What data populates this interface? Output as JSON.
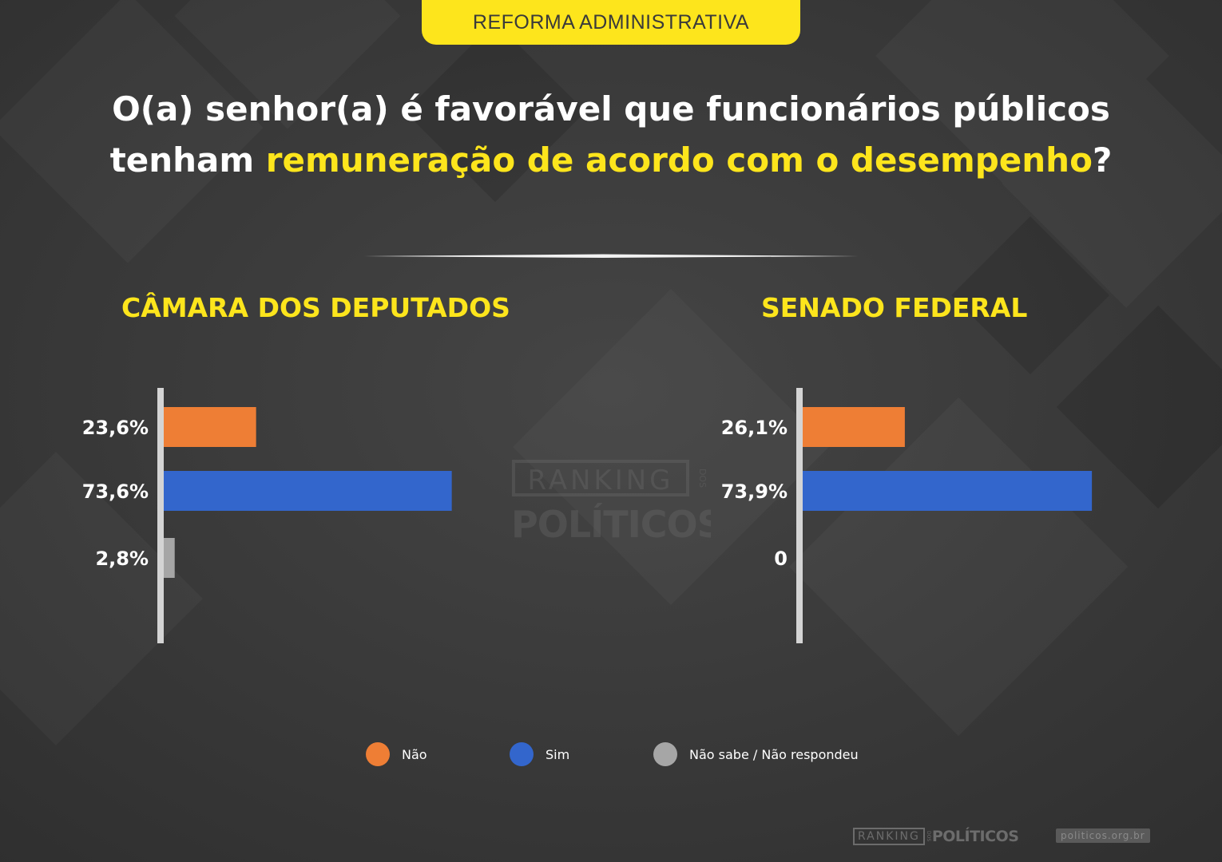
{
  "header": {
    "tag": "REFORMA ADMINISTRATIVA",
    "question_part1": "O(a) senhor(a) é favorável que funcionários públicos",
    "question_part2": "tenham ",
    "question_highlight": "remuneração de acordo com o desempenho",
    "question_end": "?"
  },
  "colors": {
    "background": "#3a3a3a",
    "accent": "#fde51c",
    "nao": "#ee7e35",
    "sim": "#3366cc",
    "nao_sabe": "#a6a6a6"
  },
  "chart_data": [
    {
      "type": "bar",
      "orientation": "horizontal",
      "title": "CÂMARA DOS DEPUTADOS",
      "categories": [
        "Não",
        "Sim",
        "Não sabe / Não respondeu"
      ],
      "values": [
        23.6,
        73.6,
        2.8
      ],
      "labels": [
        "23,6%",
        "73,6%",
        "2,8%"
      ],
      "xlim": [
        0,
        100
      ],
      "grid": false,
      "legend": "bottom"
    },
    {
      "type": "bar",
      "orientation": "horizontal",
      "title": "SENADO FEDERAL",
      "categories": [
        "Não",
        "Sim",
        "Não sabe / Não respondeu"
      ],
      "values": [
        26.1,
        73.9,
        0
      ],
      "labels": [
        "26,1%",
        "73,9%",
        "0"
      ],
      "xlim": [
        0,
        100
      ],
      "grid": false,
      "legend": "bottom"
    }
  ],
  "legend": [
    {
      "label": "Não",
      "color": "#ee7e35"
    },
    {
      "label": "Sim",
      "color": "#3366cc"
    },
    {
      "label": "Não sabe / Não respondeu",
      "color": "#a6a6a6"
    }
  ],
  "watermark": {
    "line1": "RANKING",
    "dos": "DOS",
    "line2": "POLÍTICOS"
  },
  "footer": {
    "logo_ranking": "RANKING",
    "logo_dos": "DOS",
    "logo_politicos": "POLÍTICOS",
    "url": "politicos.org.br"
  }
}
